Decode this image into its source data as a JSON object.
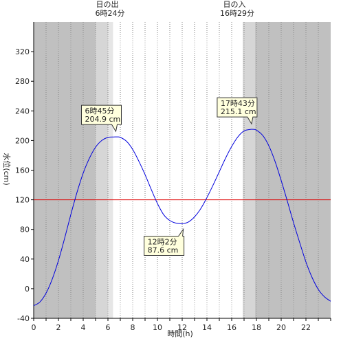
{
  "chart_data": {
    "type": "line",
    "title": "",
    "xlabel": "時間(h)",
    "ylabel": "水位(cm)",
    "xlim": [
      0,
      24
    ],
    "ylim": [
      -40,
      360
    ],
    "x_ticks": [
      0,
      2,
      4,
      6,
      8,
      10,
      12,
      14,
      16,
      18,
      20,
      22
    ],
    "y_ticks": [
      -40,
      0,
      40,
      80,
      120,
      160,
      200,
      240,
      280,
      320
    ],
    "grid": "vertical dotted every hour",
    "series": [
      {
        "color": "#0000dd",
        "x": [
          0,
          0.5,
          1,
          1.5,
          2,
          2.5,
          3,
          3.5,
          4,
          4.5,
          5,
          5.5,
          6,
          6.5,
          6.75,
          7,
          7.5,
          8,
          8.5,
          9,
          9.5,
          10,
          10.5,
          11,
          11.5,
          12,
          12.033,
          12.5,
          13,
          13.5,
          14,
          14.5,
          15,
          15.5,
          16,
          16.5,
          17,
          17.5,
          17.717,
          18,
          18.5,
          19,
          19.5,
          20,
          20.5,
          21,
          21.5,
          22,
          22.5,
          23,
          23.5,
          24
        ],
        "y": [
          -23,
          -18,
          -6,
          13,
          38,
          68,
          100,
          130,
          156,
          176,
          191,
          200,
          204.2,
          204.8,
          204.9,
          204.3,
          199,
          188,
          172,
          154,
          134,
          115,
          100,
          92,
          88.5,
          87.7,
          87.6,
          90,
          97,
          108,
          123,
          140,
          158,
          176,
          192,
          205,
          213,
          215,
          215.1,
          214,
          207,
          193,
          172,
          146,
          118,
          89,
          62,
          36,
          15,
          -1,
          -11,
          -17
        ]
      }
    ],
    "reference_line": {
      "value": 120,
      "color": "#dd0000"
    },
    "sunrise": {
      "label": "日の出",
      "time_text": "6時24分",
      "hour": 6.4
    },
    "sunset": {
      "label": "日の入",
      "time_text": "16時29分",
      "hour": 16.483
    },
    "twilight": [
      [
        5,
        6
      ],
      [
        16.9,
        17.9
      ]
    ],
    "annotations": [
      {
        "x": 6.75,
        "y": 204.9,
        "time_text": "6時45分",
        "level_text": "204.9 cm",
        "side": "above"
      },
      {
        "x": 12.033,
        "y": 87.6,
        "time_text": "12時2分",
        "level_text": "87.6 cm",
        "side": "below"
      },
      {
        "x": 17.717,
        "y": 215.1,
        "time_text": "17時43分",
        "level_text": "215.1 cm",
        "side": "above"
      }
    ],
    "colors": {
      "night": "#c0c0c0",
      "twilight_outer": "#d6d6d6",
      "twilight_inner": "#e6e6e6",
      "day": "#ffffff",
      "tide_line": "#0000dd",
      "reference_line": "#dd0000",
      "annotation_fill": "#ffffdd"
    }
  }
}
